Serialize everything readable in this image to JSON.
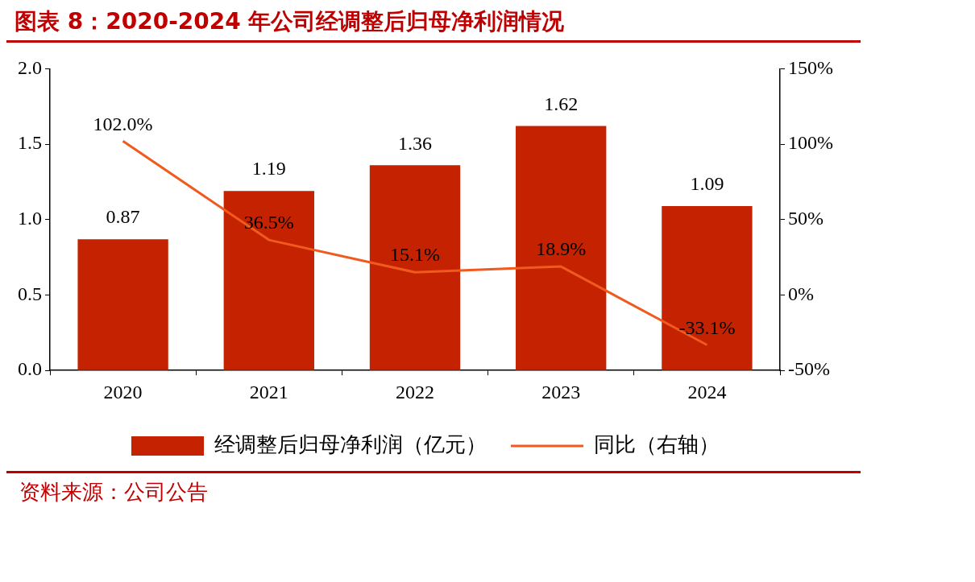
{
  "chart_data": {
    "type": "bar",
    "title": "图表 8：2020-2024 年公司经调整后归母净利润情况",
    "categories": [
      "2020",
      "2021",
      "2022",
      "2023",
      "2024"
    ],
    "series": [
      {
        "name": "经调整后归母净利润（亿元）",
        "color": "#c42200",
        "values": [
          0.87,
          1.19,
          1.36,
          1.62,
          1.09
        ],
        "value_labels": [
          "0.87",
          "1.19",
          "1.36",
          "1.62",
          "1.09"
        ]
      },
      {
        "name": "同比（右轴）",
        "type": "line",
        "axis": "y2",
        "color": "#f05a1e",
        "values": [
          102.0,
          36.5,
          15.1,
          18.9,
          -33.1
        ],
        "value_labels": [
          "102.0%",
          "36.5%",
          "15.1%",
          "18.9%",
          "-33.1%"
        ]
      }
    ],
    "ylim": [
      0,
      2
    ],
    "yticks": [
      {
        "value": 0,
        "label": "0.0"
      },
      0.5,
      {
        "value": 1,
        "label": "1.0"
      },
      1.5,
      {
        "value": 2,
        "label": "2.0"
      }
    ],
    "y2lim": [
      -50,
      150
    ],
    "y2ticks": [
      {
        "value": -50,
        "label": "-50%"
      },
      {
        "value": 0,
        "label": "0%"
      },
      {
        "value": 50,
        "label": "50%"
      },
      {
        "value": 100,
        "label": "100%"
      },
      {
        "value": 150,
        "label": "150%"
      }
    ],
    "grid": false,
    "legend": "bottom",
    "marker": "none",
    "line_style": "solid",
    "annotations": [
      "资料来源：公司公告"
    ]
  }
}
